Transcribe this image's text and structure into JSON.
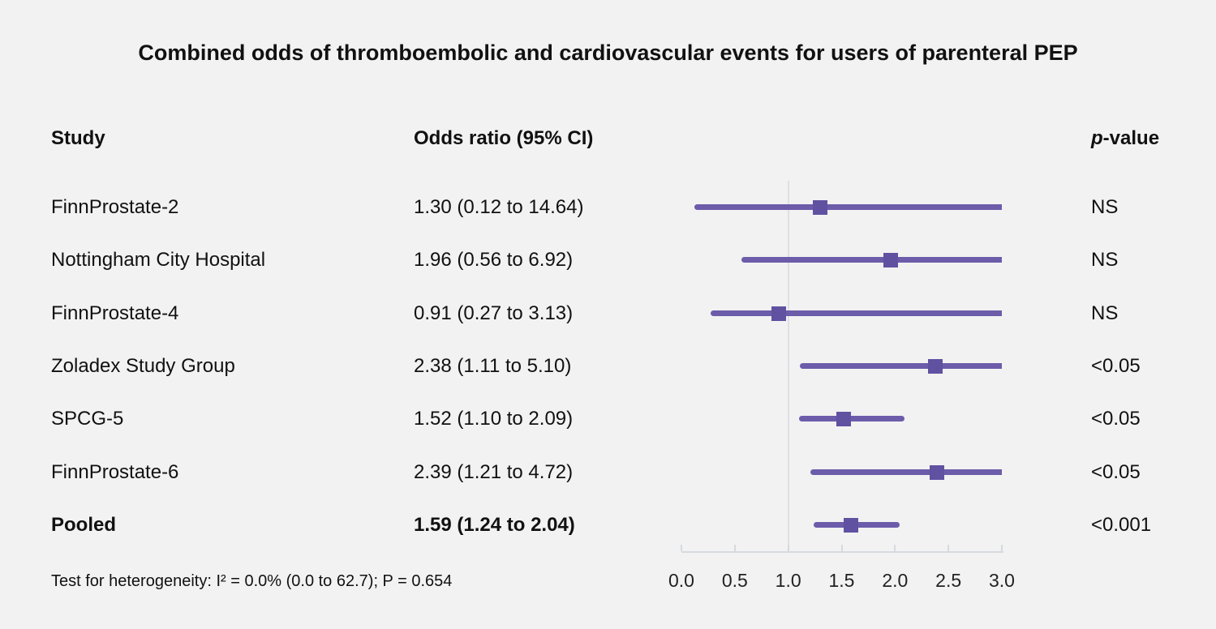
{
  "title": "Combined odds of thromboembolic and cardiovascular events for users of parenteral PEP",
  "headers": {
    "study": "Study",
    "odds_ratio": "Odds ratio (95% CI)",
    "p_value_italic": "p",
    "p_value_rest": "-value"
  },
  "footer": "Test for heterogeneity: I² = 0.0% (0.0 to 62.7); P = 0.654",
  "colors": {
    "background": "#f2f2f2",
    "ci_line": "#6c5caa",
    "marker": "#6151a1",
    "reference_line": "#dce0e6",
    "axis": "#d6dade",
    "text": "#111111"
  },
  "chart_data": {
    "type": "forest",
    "title": "Combined odds of thromboembolic and cardiovascular events for users of parenteral PEP",
    "xlabel": "",
    "x_ticks": [
      "0.0",
      "0.5",
      "1.0",
      "1.5",
      "2.0",
      "2.5",
      "3.0"
    ],
    "x_tick_values": [
      0,
      0.5,
      1,
      1.5,
      2,
      2.5,
      3
    ],
    "xlim": [
      0,
      3
    ],
    "reference_line_x": 1.0,
    "clip_upper": 3.0,
    "rows": [
      {
        "study": "FinnProstate-2",
        "or": 1.3,
        "ci_low": 0.12,
        "ci_high": 14.64,
        "or_label": "1.30 (0.12 to 14.64)",
        "p_value": "NS",
        "pooled": false
      },
      {
        "study": "Nottingham City Hospital",
        "or": 1.96,
        "ci_low": 0.56,
        "ci_high": 6.92,
        "or_label": "1.96 (0.56 to 6.92)",
        "p_value": "NS",
        "pooled": false
      },
      {
        "study": "FinnProstate-4",
        "or": 0.91,
        "ci_low": 0.27,
        "ci_high": 3.13,
        "or_label": "0.91 (0.27 to 3.13)",
        "p_value": "NS",
        "pooled": false
      },
      {
        "study": "Zoladex Study Group",
        "or": 2.38,
        "ci_low": 1.11,
        "ci_high": 5.1,
        "or_label": "2.38 (1.11 to 5.10)",
        "p_value": "<0.05",
        "pooled": false
      },
      {
        "study": "SPCG-5",
        "or": 1.52,
        "ci_low": 1.1,
        "ci_high": 2.09,
        "or_label": "1.52 (1.10 to 2.09)",
        "p_value": "<0.05",
        "pooled": false
      },
      {
        "study": "FinnProstate-6",
        "or": 2.39,
        "ci_low": 1.21,
        "ci_high": 4.72,
        "or_label": "2.39 (1.21 to 4.72)",
        "p_value": "<0.05",
        "pooled": false
      },
      {
        "study": "Pooled",
        "or": 1.59,
        "ci_low": 1.24,
        "ci_high": 2.04,
        "or_label": "1.59 (1.24 to 2.04)",
        "p_value": "<0.001",
        "pooled": true
      }
    ],
    "heterogeneity": "Test for heterogeneity: I² = 0.0% (0.0 to 62.7); P = 0.654"
  }
}
